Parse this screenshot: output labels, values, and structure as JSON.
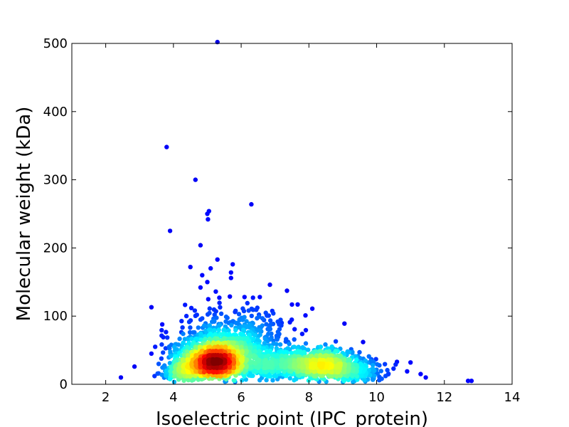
{
  "chart_data": {
    "type": "scatter",
    "title": "",
    "xlabel": "Isoelectric point (IPC_protein)",
    "ylabel": "Molecular weight (kDa)",
    "xlim": [
      1,
      14
    ],
    "ylim": [
      0,
      500
    ],
    "xticks": [
      2,
      4,
      6,
      8,
      10,
      12,
      14
    ],
    "yticks": [
      0,
      100,
      200,
      300,
      400,
      500
    ],
    "grid": false,
    "legend": "none",
    "colormap": "jet (point density)",
    "colors": {
      "low_density": "#00008f",
      "high_density": "#a00000"
    },
    "outliers": [
      {
        "x": 5.3,
        "y": 502
      },
      {
        "x": 3.8,
        "y": 348
      },
      {
        "x": 4.65,
        "y": 300
      },
      {
        "x": 6.3,
        "y": 264
      },
      {
        "x": 5.05,
        "y": 254
      },
      {
        "x": 5.0,
        "y": 250
      },
      {
        "x": 5.02,
        "y": 242
      },
      {
        "x": 3.9,
        "y": 225
      },
      {
        "x": 4.8,
        "y": 204
      },
      {
        "x": 5.3,
        "y": 183
      },
      {
        "x": 5.75,
        "y": 176
      },
      {
        "x": 4.5,
        "y": 172
      },
      {
        "x": 5.1,
        "y": 170
      },
      {
        "x": 5.7,
        "y": 164
      },
      {
        "x": 4.85,
        "y": 160
      },
      {
        "x": 5.7,
        "y": 156
      },
      {
        "x": 5.0,
        "y": 150
      },
      {
        "x": 6.85,
        "y": 146
      },
      {
        "x": 4.8,
        "y": 142
      },
      {
        "x": 5.25,
        "y": 136
      },
      {
        "x": 6.1,
        "y": 128
      },
      {
        "x": 6.35,
        "y": 127
      },
      {
        "x": 6.55,
        "y": 128
      },
      {
        "x": 3.35,
        "y": 113
      },
      {
        "x": 7.5,
        "y": 117
      },
      {
        "x": 8.1,
        "y": 111
      },
      {
        "x": 6.95,
        "y": 104
      },
      {
        "x": 7.9,
        "y": 101
      },
      {
        "x": 9.05,
        "y": 89
      },
      {
        "x": 3.7,
        "y": 69
      },
      {
        "x": 3.35,
        "y": 45
      },
      {
        "x": 2.85,
        "y": 26
      },
      {
        "x": 2.45,
        "y": 10
      },
      {
        "x": 10.5,
        "y": 23
      },
      {
        "x": 10.9,
        "y": 19
      },
      {
        "x": 11.3,
        "y": 15
      },
      {
        "x": 11.45,
        "y": 10
      },
      {
        "x": 12.7,
        "y": 5
      },
      {
        "x": 12.8,
        "y": 5
      },
      {
        "x": 11.0,
        "y": 32
      },
      {
        "x": 10.6,
        "y": 33
      },
      {
        "x": 9.6,
        "y": 62
      }
    ],
    "clusters": [
      {
        "cx": 5.2,
        "cy": 27,
        "sx": 0.45,
        "sy": 14,
        "n": 1400
      },
      {
        "cx": 5.5,
        "cy": 45,
        "sx": 0.8,
        "sy": 22,
        "n": 700
      },
      {
        "cx": 8.4,
        "cy": 25,
        "sx": 0.55,
        "sy": 12,
        "n": 650
      },
      {
        "cx": 7.2,
        "cy": 25,
        "sx": 0.8,
        "sy": 14,
        "n": 450
      },
      {
        "cx": 9.4,
        "cy": 15,
        "sx": 0.5,
        "sy": 10,
        "n": 180
      },
      {
        "cx": 4.2,
        "cy": 15,
        "sx": 0.25,
        "sy": 8,
        "n": 200
      },
      {
        "cx": 6.0,
        "cy": 80,
        "sx": 0.8,
        "sy": 20,
        "n": 120
      }
    ]
  }
}
